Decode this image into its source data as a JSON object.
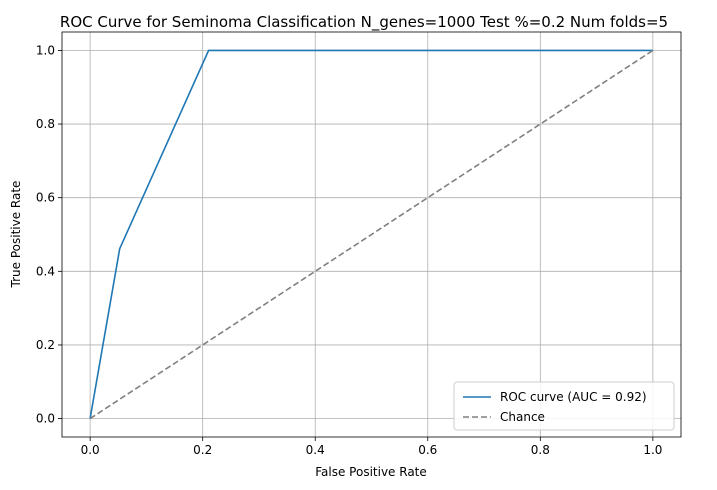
{
  "chart_data": {
    "type": "line",
    "title": "ROC Curve for Seminoma Classification N_genes=1000 Test %=0.2 Num folds=5",
    "xlabel": "False Positive Rate",
    "ylabel": "True Positive Rate",
    "xlim": [
      -0.05,
      1.05
    ],
    "ylim": [
      -0.05,
      1.05
    ],
    "xticks": [
      0.0,
      0.2,
      0.4,
      0.6,
      0.8,
      1.0
    ],
    "yticks": [
      0.0,
      0.2,
      0.4,
      0.6,
      0.8,
      1.0
    ],
    "xtick_labels": [
      "0.0",
      "0.2",
      "0.4",
      "0.6",
      "0.8",
      "1.0"
    ],
    "ytick_labels": [
      "0.0",
      "0.2",
      "0.4",
      "0.6",
      "0.8",
      "1.0"
    ],
    "grid": true,
    "legend_position": "lower-right",
    "series": [
      {
        "name": "ROC curve (AUC = 0.92)",
        "color": "#1f77b4",
        "style": "solid",
        "x": [
          0.0,
          0.0526,
          0.2105,
          1.0
        ],
        "y": [
          0.0,
          0.4615,
          1.0,
          1.0
        ]
      },
      {
        "name": "Chance",
        "color": "#808080",
        "style": "dashed",
        "x": [
          0.0,
          1.0
        ],
        "y": [
          0.0,
          1.0
        ]
      }
    ]
  }
}
